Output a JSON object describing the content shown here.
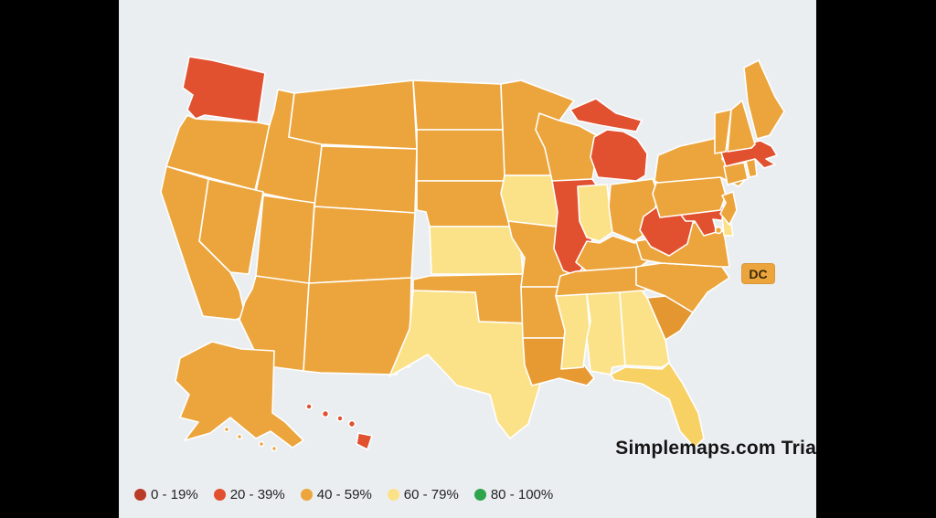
{
  "page_bg": "#ebeef1",
  "frame_bar_color": "#000000",
  "watermark": "Simplemaps.com Trial",
  "dc_label": "DC",
  "legend": {
    "items": [
      {
        "label": "0 - 19%",
        "color": "#b93b28"
      },
      {
        "label": "20 - 39%",
        "color": "#e1502f"
      },
      {
        "label": "40 - 59%",
        "color": "#eca53c"
      },
      {
        "label": "60 - 79%",
        "color": "#fbe289"
      },
      {
        "label": "80 - 100%",
        "color": "#2ea44c"
      }
    ]
  },
  "chart_data": {
    "type": "choropleth-map",
    "region": "United States",
    "legend_buckets": [
      "0 - 19%",
      "20 - 39%",
      "40 - 59%",
      "60 - 79%",
      "80 - 100%"
    ],
    "level_colors": {
      "0 - 19%": "#b93b28",
      "20 - 39%": "#e1502f",
      "40 - 59%": "#eca53c",
      "60 - 79%": "#fbe289",
      "80 - 100%": "#2ea44c"
    },
    "state_levels": {
      "WA": "20 - 39%",
      "OR": "40 - 59%",
      "CA": "40 - 59%",
      "NV": "40 - 59%",
      "ID": "40 - 59%",
      "MT": "40 - 59%",
      "WY": "40 - 59%",
      "UT": "40 - 59%",
      "CO": "40 - 59%",
      "AZ": "40 - 59%",
      "NM": "40 - 59%",
      "ND": "40 - 59%",
      "SD": "40 - 59%",
      "NE": "40 - 59%",
      "KS": "60 - 79%",
      "OK": "40 - 59%",
      "TX": "60 - 79%",
      "MN": "40 - 59%",
      "IA": "60 - 79%",
      "MO": "40 - 59%",
      "AR": "40 - 59%",
      "LA": "40 - 59%",
      "WI": "40 - 59%",
      "IL": "20 - 39%",
      "MI": "20 - 39%",
      "IN": "60 - 79%",
      "OH": "40 - 59%",
      "KY": "40 - 59%",
      "TN": "40 - 59%",
      "MS": "60 - 79%",
      "AL": "60 - 79%",
      "GA": "60 - 79%",
      "FL": "60 - 79%",
      "SC": "40 - 59%",
      "NC": "40 - 59%",
      "VA": "40 - 59%",
      "WV": "20 - 39%",
      "MD": "20 - 39%",
      "DE": "60 - 79%",
      "PA": "40 - 59%",
      "NJ": "40 - 59%",
      "NY": "40 - 59%",
      "CT": "40 - 59%",
      "RI": "40 - 59%",
      "MA": "20 - 39%",
      "VT": "40 - 59%",
      "NH": "40 - 59%",
      "ME": "40 - 59%",
      "AK": "40 - 59%",
      "HI": "20 - 39%",
      "DC": "40 - 59%"
    },
    "fill_overrides": {
      "FL": "#f8d165",
      "LA": "#e79a31",
      "SC": "#e49630"
    },
    "map_border_color": "#ffffff"
  }
}
